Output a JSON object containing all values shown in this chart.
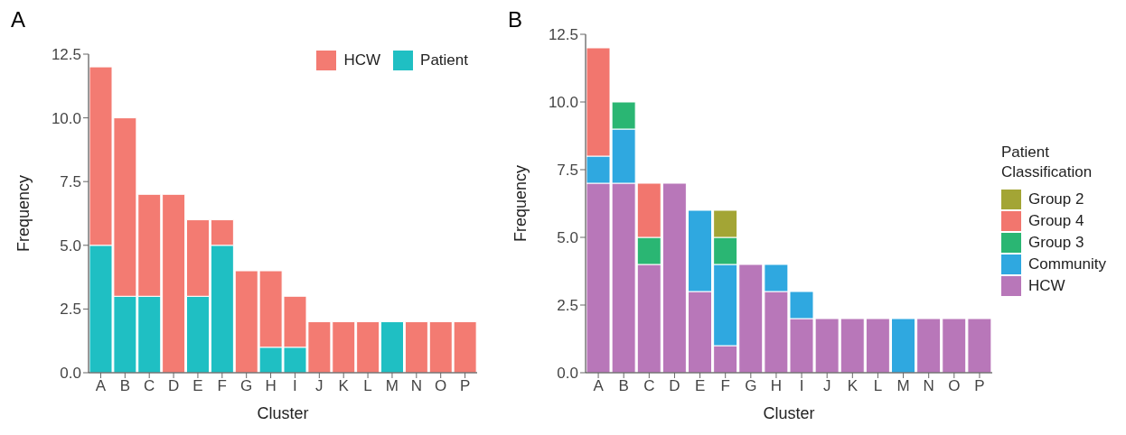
{
  "chart_data": [
    {
      "type": "bar",
      "title": "A",
      "xlabel": "Cluster",
      "ylabel": "Frequency",
      "stacked": true,
      "legend": "top right",
      "categories": [
        "A",
        "B",
        "C",
        "D",
        "E",
        "F",
        "G",
        "H",
        "I",
        "J",
        "K",
        "L",
        "M",
        "N",
        "O",
        "P"
      ],
      "ylim": [
        0,
        12.5
      ],
      "yticks": [
        {
          "value": 0,
          "label": "0.0"
        },
        {
          "value": 2.5,
          "label": "2.5"
        },
        {
          "value": 5,
          "label": "5.0"
        },
        {
          "value": 7.5,
          "label": "7.5"
        },
        {
          "value": 10,
          "label": "10.0"
        },
        {
          "value": 12.5,
          "label": "12.5"
        }
      ],
      "series": [
        {
          "name": "Patient",
          "color": "#1fbfc3",
          "values": [
            5,
            3,
            3,
            0,
            3,
            5,
            0,
            1,
            1,
            0,
            0,
            0,
            2,
            0,
            0,
            0
          ]
        },
        {
          "name": "HCW",
          "color": "#f37b72",
          "values": [
            7,
            7,
            4,
            7,
            3,
            1,
            4,
            3,
            2,
            2,
            2,
            2,
            0,
            2,
            2,
            2
          ]
        }
      ]
    },
    {
      "type": "bar",
      "title": "B",
      "xlabel": "Cluster",
      "ylabel": "Frequency",
      "stacked": true,
      "legend": "right",
      "legend_title": "Patient Classification",
      "categories": [
        "A",
        "B",
        "C",
        "D",
        "E",
        "F",
        "G",
        "H",
        "I",
        "J",
        "K",
        "L",
        "M",
        "N",
        "O",
        "P"
      ],
      "ylim": [
        0,
        12.5
      ],
      "yticks": [
        {
          "value": 0,
          "label": "0.0"
        },
        {
          "value": 2.5,
          "label": "2.5"
        },
        {
          "value": 5,
          "label": "5.0"
        },
        {
          "value": 7.5,
          "label": "7.5"
        },
        {
          "value": 10,
          "label": "10.0"
        },
        {
          "value": 12.5,
          "label": "12.5"
        }
      ],
      "series": [
        {
          "name": "HCW",
          "color": "#b877b9",
          "values": [
            7,
            7,
            4,
            7,
            3,
            1,
            4,
            3,
            2,
            2,
            2,
            2,
            0,
            2,
            2,
            2
          ]
        },
        {
          "name": "Community",
          "color": "#2fa8e0",
          "values": [
            1,
            2,
            0,
            0,
            3,
            3,
            0,
            1,
            1,
            0,
            0,
            0,
            2,
            0,
            0,
            0
          ]
        },
        {
          "name": "Group 3",
          "color": "#2ab673",
          "values": [
            0,
            1,
            1,
            0,
            0,
            1,
            0,
            0,
            0,
            0,
            0,
            0,
            0,
            0,
            0,
            0
          ]
        },
        {
          "name": "Group 4",
          "color": "#f2766e",
          "values": [
            4,
            0,
            2,
            0,
            0,
            0,
            0,
            0,
            0,
            0,
            0,
            0,
            0,
            0,
            0,
            0
          ]
        },
        {
          "name": "Group 2",
          "color": "#a3a535",
          "values": [
            0,
            0,
            0,
            0,
            0,
            1,
            0,
            0,
            0,
            0,
            0,
            0,
            0,
            0,
            0,
            0
          ]
        }
      ]
    }
  ]
}
